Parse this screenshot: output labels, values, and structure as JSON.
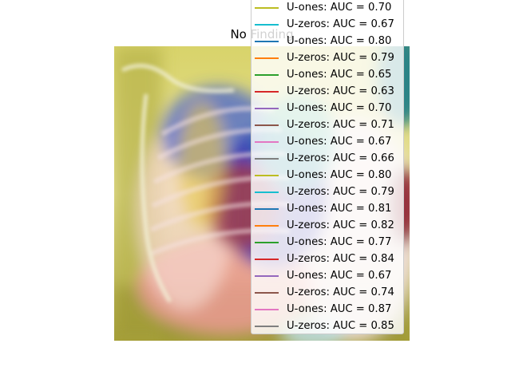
{
  "plot": {
    "title": "No Finding"
  },
  "legend": {
    "entries": [
      {
        "label": "U-ones: AUC = 0.70",
        "color": "#bcbd22"
      },
      {
        "label": "U-zeros: AUC = 0.67",
        "color": "#17becf"
      },
      {
        "label": "U-ones: AUC = 0.80",
        "color": "#1f77b4"
      },
      {
        "label": "U-zeros: AUC = 0.79",
        "color": "#ff7f0e"
      },
      {
        "label": "U-ones: AUC = 0.65",
        "color": "#2ca02c"
      },
      {
        "label": "U-zeros: AUC = 0.63",
        "color": "#d62728"
      },
      {
        "label": "U-ones: AUC = 0.70",
        "color": "#9467bd"
      },
      {
        "label": "U-zeros: AUC = 0.71",
        "color": "#8c564b"
      },
      {
        "label": "U-ones: AUC = 0.67",
        "color": "#e377c2"
      },
      {
        "label": "U-zeros: AUC = 0.66",
        "color": "#7f7f7f"
      },
      {
        "label": "U-ones: AUC = 0.80",
        "color": "#bcbd22"
      },
      {
        "label": "U-zeros: AUC = 0.79",
        "color": "#17becf"
      },
      {
        "label": "U-ones: AUC = 0.81",
        "color": "#1f77b4"
      },
      {
        "label": "U-zeros: AUC = 0.82",
        "color": "#ff7f0e"
      },
      {
        "label": "U-ones: AUC = 0.77",
        "color": "#2ca02c"
      },
      {
        "label": "U-zeros: AUC = 0.84",
        "color": "#d62728"
      },
      {
        "label": "U-ones: AUC = 0.67",
        "color": "#9467bd"
      },
      {
        "label": "U-zeros: AUC = 0.74",
        "color": "#8c564b"
      },
      {
        "label": "U-ones: AUC = 0.87",
        "color": "#e377c2"
      },
      {
        "label": "U-zeros: AUC = 0.85",
        "color": "#7f7f7f"
      }
    ]
  }
}
